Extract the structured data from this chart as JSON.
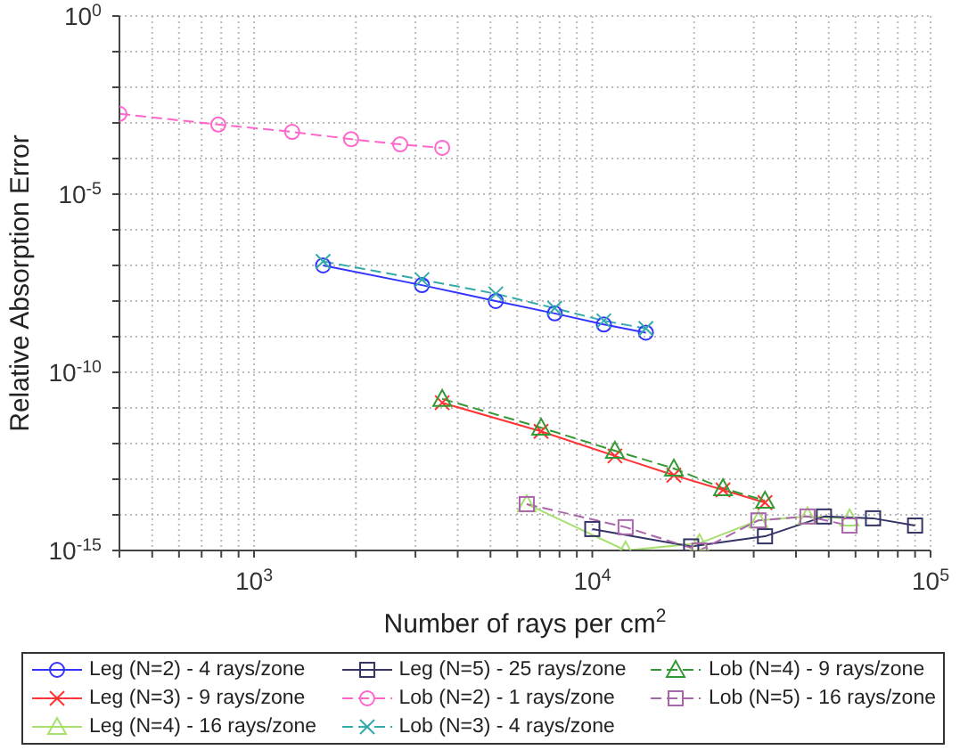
{
  "chart_data": {
    "type": "line",
    "xlabel": "Number of rays per cm$^{2}$",
    "ylabel": "Relative Absorption Error",
    "log": "xy",
    "grid": true,
    "legend": "bottom",
    "xlim": [
      400,
      100000
    ],
    "xticks": [
      {
        "value": 400,
        "label": null
      },
      {
        "value": 500,
        "label": null
      },
      {
        "value": 600,
        "label": null
      },
      {
        "value": 700,
        "label": null
      },
      {
        "value": 800,
        "label": null
      },
      {
        "value": 900,
        "label": null
      },
      {
        "value": 1000,
        "label": "10$^{3}$"
      },
      {
        "value": 2000,
        "label": null
      },
      {
        "value": 3000,
        "label": null
      },
      {
        "value": 4000,
        "label": null
      },
      {
        "value": 5000,
        "label": null
      },
      {
        "value": 6000,
        "label": null
      },
      {
        "value": 7000,
        "label": null
      },
      {
        "value": 8000,
        "label": null
      },
      {
        "value": 9000,
        "label": null
      },
      {
        "value": 10000,
        "label": "10$^{4}$"
      },
      {
        "value": 20000,
        "label": null
      },
      {
        "value": 30000,
        "label": null
      },
      {
        "value": 40000,
        "label": null
      },
      {
        "value": 50000,
        "label": null
      },
      {
        "value": 60000,
        "label": null
      },
      {
        "value": 70000,
        "label": null
      },
      {
        "value": 80000,
        "label": null
      },
      {
        "value": 90000,
        "label": null
      },
      {
        "value": 100000,
        "label": "10$^{5}$"
      }
    ],
    "ylim": [
      1e-15,
      1
    ],
    "yticks": [
      {
        "value": 1e-15,
        "label": "10$^{-15}$"
      },
      {
        "value": 1e-14,
        "label": null
      },
      {
        "value": 1e-13,
        "label": null
      },
      {
        "value": 1e-12,
        "label": null
      },
      {
        "value": 1e-11,
        "label": null
      },
      {
        "value": 1e-10,
        "label": "10$^{-10}$"
      },
      {
        "value": 1e-09,
        "label": null
      },
      {
        "value": 1e-08,
        "label": null
      },
      {
        "value": 1e-07,
        "label": null
      },
      {
        "value": 1e-06,
        "label": null
      },
      {
        "value": 1e-05,
        "label": "10$^{-5}$"
      },
      {
        "value": 0.0001,
        "label": null
      },
      {
        "value": 0.001,
        "label": null
      },
      {
        "value": 0.01,
        "label": null
      },
      {
        "value": 0.1,
        "label": null
      },
      {
        "value": 1,
        "label": "10$^{0}$"
      }
    ],
    "series": [
      {
        "name": "Leg (N=2) - 4 rays/zone",
        "color": "#3333ff",
        "marker": "circle",
        "line_style": "solid",
        "x": [
          1600,
          3136,
          5184,
          7744,
          10816,
          14400
        ],
        "values": [
          1e-07,
          2.8e-08,
          1e-08,
          4.5e-09,
          2.2e-09,
          1.3e-09
        ]
      },
      {
        "name": "Leg (N=3) - 9 rays/zone",
        "color": "#ff3333",
        "marker": "cross",
        "line_style": "solid",
        "x": [
          3600,
          7056,
          11664,
          17424,
          24336,
          32400
        ],
        "values": [
          1.4e-11,
          2.2e-12,
          4.5e-13,
          1.3e-13,
          5e-14,
          2.2e-14
        ]
      },
      {
        "name": "Leg (N=4) - 16 rays/zone",
        "color": "#a8e070",
        "marker": "triangle",
        "line_style": "solid",
        "x": [
          6400,
          12544,
          20736,
          30976,
          43264,
          57600
        ],
        "values": [
          2e-14,
          1e-15,
          1.6e-15,
          7e-15,
          9e-15,
          8e-15
        ]
      },
      {
        "name": "Leg (N=5) - 25 rays/zone",
        "color": "#333366",
        "marker": "square",
        "line_style": "solid",
        "x": [
          10000,
          19600,
          32400,
          48400,
          67600,
          90000
        ],
        "values": [
          4e-15,
          1.3e-15,
          2.5e-15,
          9e-15,
          8e-15,
          5e-15
        ]
      },
      {
        "name": "Lob (N=2) - 1 rays/zone",
        "color": "#ff66cc",
        "marker": "circle",
        "line_style": "dashed",
        "x": [
          400,
          784,
          1296,
          1936,
          2704,
          3600
        ],
        "values": [
          0.0018,
          0.0009,
          0.00056,
          0.00035,
          0.00025,
          0.0002
        ]
      },
      {
        "name": "Lob (N=3) - 4 rays/zone",
        "color": "#33aaaa",
        "marker": "cross",
        "line_style": "dashed",
        "x": [
          1600,
          3136,
          5184,
          7744,
          10816,
          14400
        ],
        "values": [
          1.3e-07,
          4e-08,
          1.6e-08,
          6.3e-09,
          2.8e-09,
          1.7e-09
        ]
      },
      {
        "name": "Lob (N=4) - 9 rays/zone",
        "color": "#339933",
        "marker": "triangle",
        "line_style": "dashed",
        "x": [
          3600,
          7056,
          11664,
          17424,
          24336,
          32400
        ],
        "values": [
          1.8e-11,
          2.8e-12,
          6.3e-13,
          2e-13,
          5.6e-14,
          2.5e-14
        ]
      },
      {
        "name": "Lob (N=5) - 16 rays/zone",
        "color": "#aa66aa",
        "marker": "square",
        "line_style": "dashed",
        "x": [
          6400,
          12544,
          20736,
          30976,
          43264,
          57600
        ],
        "values": [
          2e-14,
          4.5e-15,
          1e-15,
          7e-15,
          9e-15,
          5e-15
        ]
      }
    ]
  }
}
